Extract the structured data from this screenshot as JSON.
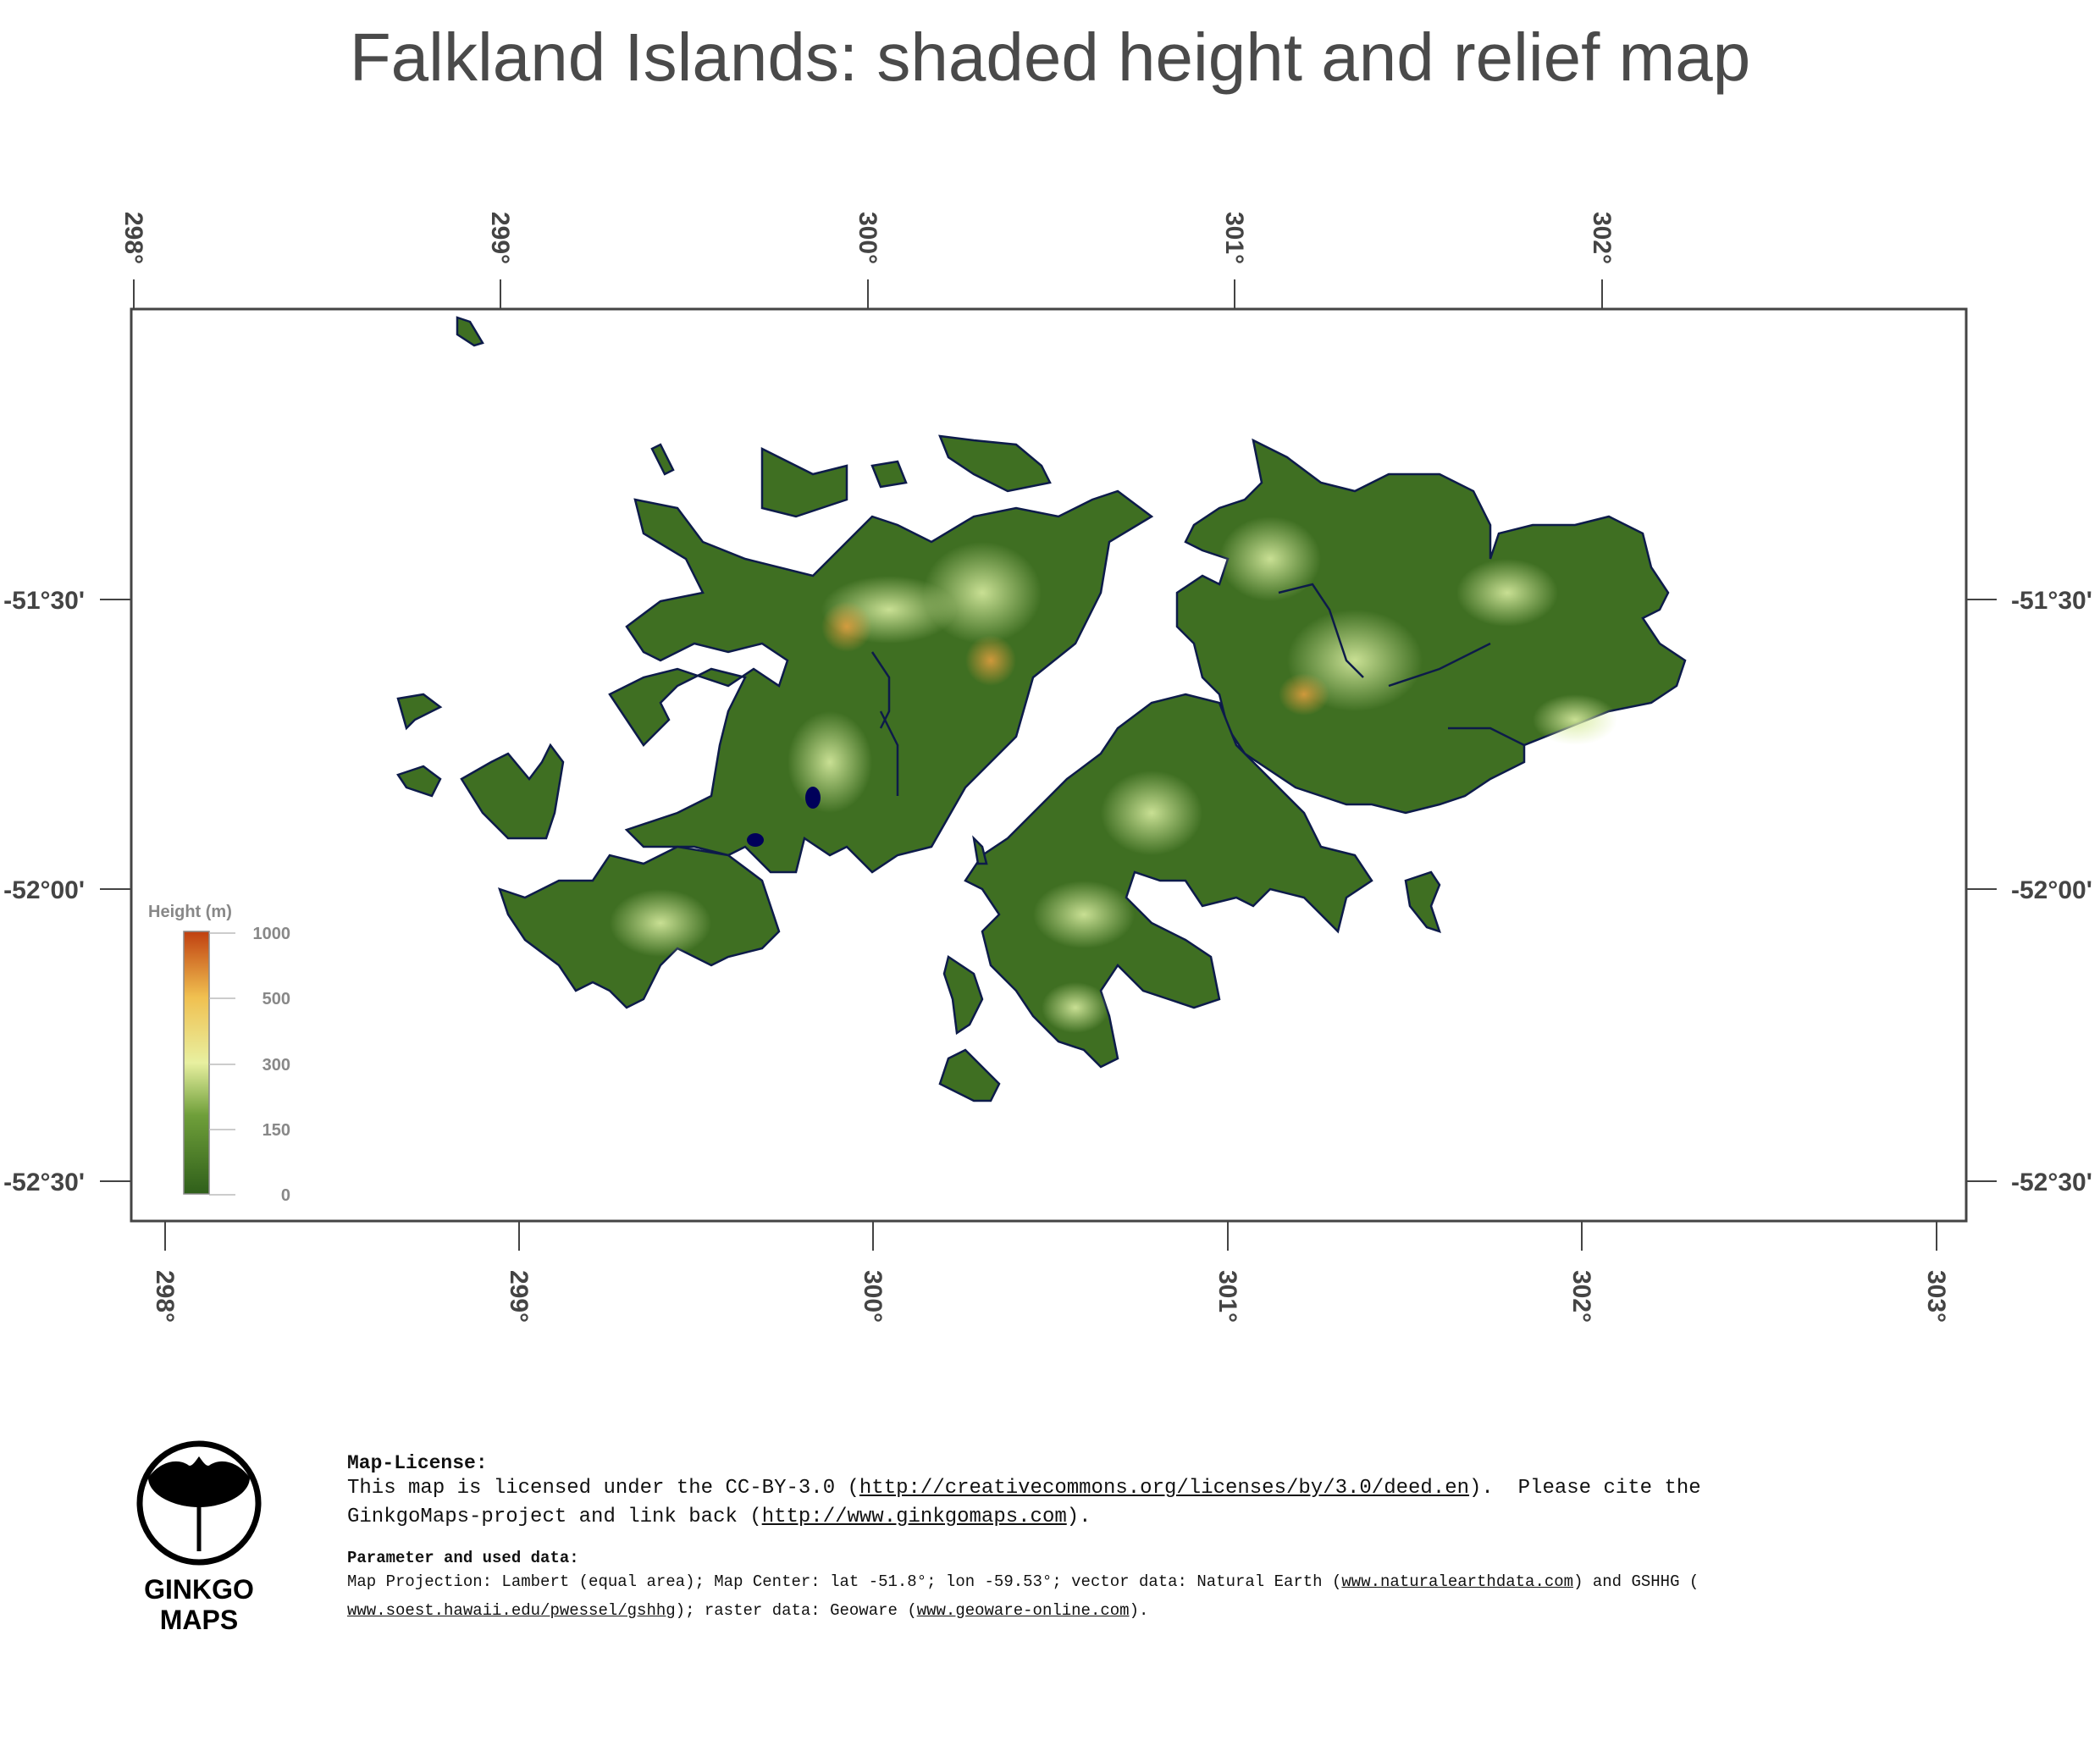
{
  "title": "Falkland Islands: shaded height and relief map",
  "map": {
    "top_ticks": [
      "298°",
      "299°",
      "300°",
      "301°",
      "302°"
    ],
    "bottom_ticks": [
      "298°",
      "299°",
      "300°",
      "301°",
      "302°",
      "303°"
    ],
    "left_ticks": [
      "-51°30'",
      "-52°00'",
      "-52°30'"
    ],
    "right_ticks": [
      "-51°30'",
      "-52°00'",
      "-52°30'"
    ],
    "land_color": "#3f6f22",
    "coast_color": "#0d1b4a",
    "lake_color": "#00005a"
  },
  "legend": {
    "title": "Height (m)",
    "ticks": [
      "1000",
      "500",
      "300",
      "150",
      "0"
    ]
  },
  "footer": {
    "license_heading": "Map-License:",
    "license_text_1": "This map is licensed under the CC-BY-3.0 (",
    "license_url": "http://creativecommons.org/licenses/by/3.0/deed.en",
    "license_text_2": ").  Please cite the",
    "license_text_3": "GinkgoMaps-project and link back (",
    "project_url": "http://www.ginkgomaps.com",
    "license_text_4": ").",
    "param_heading": "Parameter and used data:",
    "param_text_1": "Map Projection: Lambert (equal area); Map Center: lat -51.8°; lon -59.53°; vector data: Natural Earth (",
    "natural_earth_url": "www.naturalearthdata.com",
    "param_text_2": ") and GSHHG (",
    "gshhg_url": "www.soest.hawaii.edu/pwessel/gshhg",
    "param_text_3": "); raster data: Geoware (",
    "geoware_url": "www.geoware-online.com",
    "param_text_4": ")."
  },
  "logo": {
    "line1": "GINKGO",
    "line2": "MAPS"
  }
}
